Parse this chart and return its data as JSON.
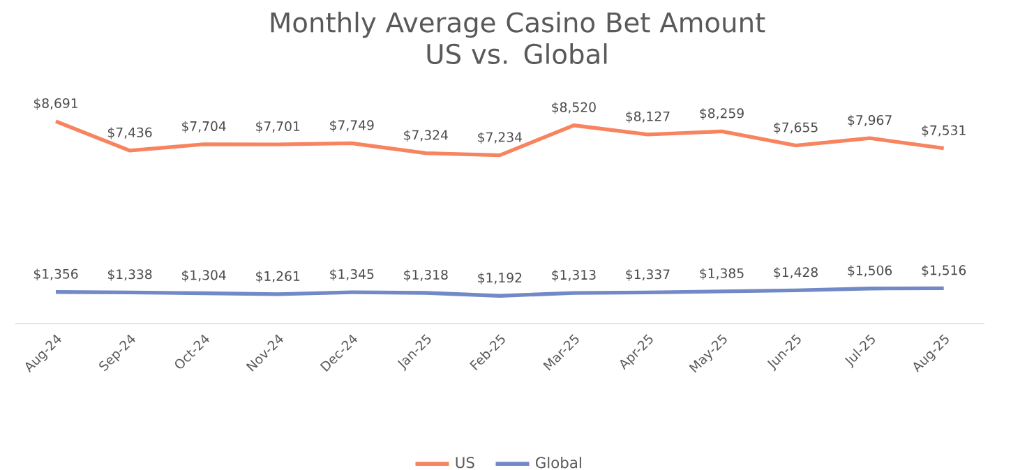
{
  "chart_data": {
    "type": "line",
    "title": "Monthly Average Casino Bet Amount\nUS vs. Global",
    "categories": [
      "Aug-24",
      "Sep-24",
      "Oct-24",
      "Nov-24",
      "Dec-24",
      "Jan-25",
      "Feb-25",
      "Mar-25",
      "Apr-25",
      "May-25",
      "Jun-25",
      "Jul-25",
      "Aug-25"
    ],
    "series": [
      {
        "name": "US",
        "color": "#f7845e",
        "values": [
          8691,
          7436,
          7704,
          7701,
          7749,
          7324,
          7234,
          8520,
          8127,
          8259,
          7655,
          7967,
          7531
        ],
        "value_labels": [
          "$8,691",
          "$7,436",
          "$7,704",
          "$7,701",
          "$7,749",
          "$7,324",
          "$7,234",
          "$8,520",
          "$8,127",
          "$8,259",
          "$7,655",
          "$7,967",
          "$7,531"
        ]
      },
      {
        "name": "Global",
        "color": "#7189c6",
        "values": [
          1356,
          1338,
          1304,
          1261,
          1345,
          1318,
          1192,
          1313,
          1337,
          1385,
          1428,
          1506,
          1516
        ],
        "value_labels": [
          "$1,356",
          "$1,338",
          "$1,304",
          "$1,261",
          "$1,345",
          "$1,318",
          "$1,192",
          "$1,313",
          "$1,337",
          "$1,385",
          "$1,428",
          "$1,506",
          "$1,516"
        ]
      }
    ],
    "legend": "bottom",
    "marker": "none",
    "line_style": "solid"
  }
}
